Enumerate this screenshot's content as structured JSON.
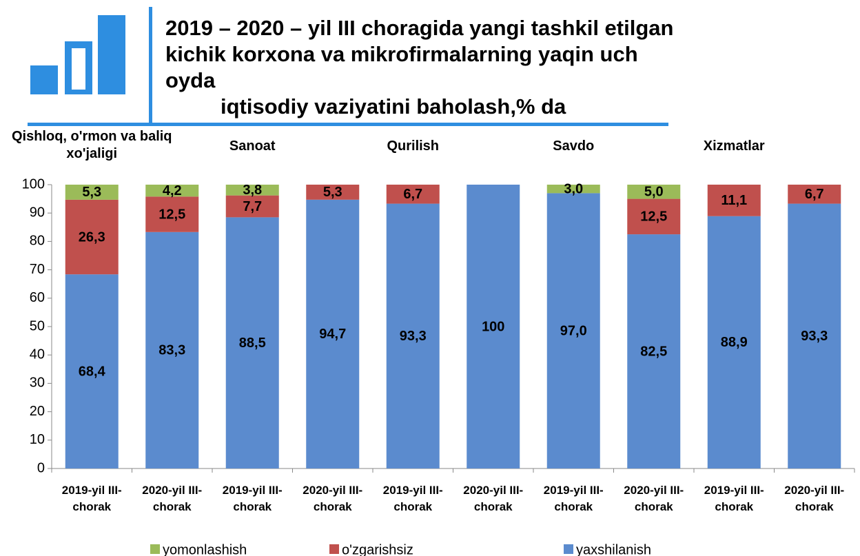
{
  "chart_data": {
    "type": "stacked_bar",
    "title": [
      "2019 – 2020 – yil  III choragida yangi tashkil etilgan",
      "kichik korxona va mikrofirmalarning yaqin uch oyda",
      "iqtisodiy vaziyatini baholash,% da"
    ],
    "groups": [
      "Qishloq, o'rmon va baliq xo'jaligi",
      "Sanoat",
      "Qurilish",
      "Savdo",
      "Xizmatlar"
    ],
    "categories": [
      "2019-yil III-chorak",
      "2020-yil III-chorak",
      "2019-yil III-chorak",
      "2020-yil III-chorak",
      "2019-yil III-chorak",
      "2020-yil III-chorak",
      "2019-yil III-chorak",
      "2020-yil III-chorak",
      "2019-yil III-chorak",
      "2020-yil III-chorak"
    ],
    "series": [
      {
        "name": "yomonlashish",
        "color": "#9bbb59",
        "values": [
          5.3,
          4.2,
          3.8,
          null,
          null,
          null,
          3.0,
          5.0,
          null,
          null
        ],
        "value_labels": [
          "5,3",
          "4,2",
          "3,8",
          null,
          null,
          null,
          "3,0",
          "5,0",
          null,
          null
        ]
      },
      {
        "name": "o'zgarishsiz",
        "color": "#c0504d",
        "values": [
          26.3,
          12.5,
          7.7,
          5.3,
          6.7,
          null,
          null,
          12.5,
          11.1,
          6.7
        ],
        "value_labels": [
          "26,3",
          "12,5",
          "7,7",
          "5,3",
          "6,7",
          null,
          null,
          "12,5",
          "11,1",
          "6,7"
        ]
      },
      {
        "name": "yaxshilanish",
        "color": "#5b8bce",
        "values": [
          68.4,
          83.3,
          88.5,
          94.7,
          93.3,
          100,
          97.0,
          82.5,
          88.9,
          93.3
        ],
        "value_labels": [
          "68,4",
          "83,3",
          "88,5",
          "94,7",
          "93,3",
          "100",
          "97,0",
          "82,5",
          "88,9",
          "93,3"
        ]
      }
    ],
    "ylim": [
      0,
      100
    ],
    "yticks": [
      0,
      10,
      20,
      30,
      40,
      50,
      60,
      70,
      80,
      90,
      100
    ],
    "grid": false
  }
}
